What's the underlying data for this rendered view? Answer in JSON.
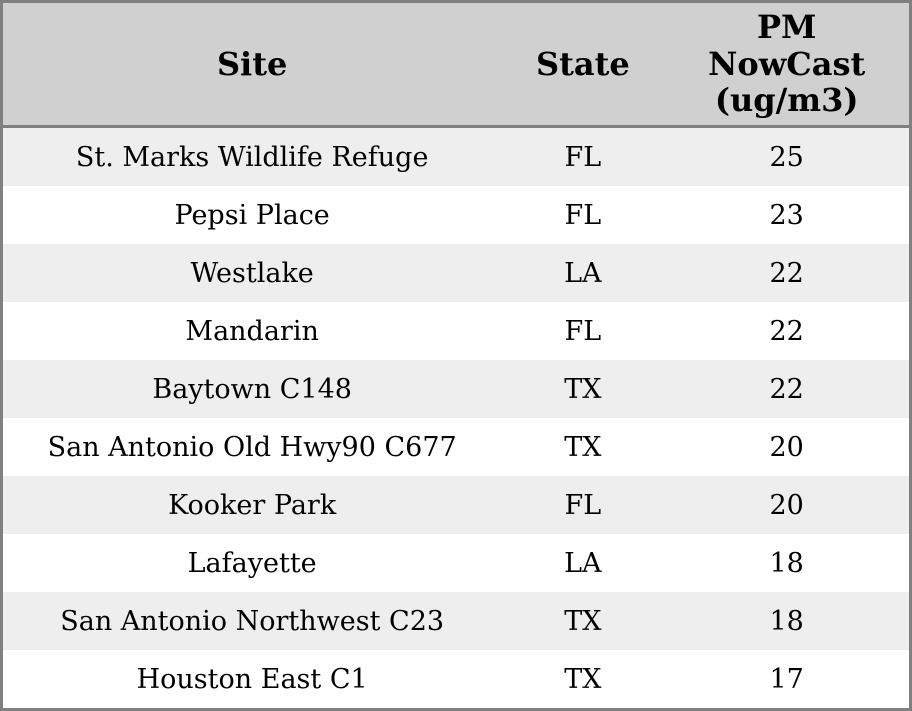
{
  "table": {
    "columns": [
      {
        "label": "Site"
      },
      {
        "label": "State"
      },
      {
        "label": "PM\nNowCast\n(ug/m3)"
      }
    ],
    "rows": [
      {
        "site": "St. Marks Wildlife Refuge",
        "state": "FL",
        "pm": "25"
      },
      {
        "site": "Pepsi Place",
        "state": "FL",
        "pm": "23"
      },
      {
        "site": "Westlake",
        "state": "LA",
        "pm": "22"
      },
      {
        "site": "Mandarin",
        "state": "FL",
        "pm": "22"
      },
      {
        "site": "Baytown C148",
        "state": "TX",
        "pm": "22"
      },
      {
        "site": "San Antonio Old Hwy90 C677",
        "state": "TX",
        "pm": "20"
      },
      {
        "site": "Kooker Park",
        "state": "FL",
        "pm": "20"
      },
      {
        "site": "Lafayette",
        "state": "LA",
        "pm": "18"
      },
      {
        "site": "San Antonio Northwest C23",
        "state": "TX",
        "pm": "18"
      },
      {
        "site": "Houston East C1",
        "state": "TX",
        "pm": "17"
      }
    ]
  },
  "colors": {
    "border": "#808080",
    "header_bg": "#d0d0d0",
    "row_alt_bg": "#eeeeee",
    "row_bg": "#ffffff",
    "text": "#000000"
  },
  "chart_data": {
    "type": "table",
    "columns": [
      "Site",
      "State",
      "PM NowCast (ug/m3)"
    ],
    "rows": [
      [
        "St. Marks Wildlife Refuge",
        "FL",
        25
      ],
      [
        "Pepsi Place",
        "FL",
        23
      ],
      [
        "Westlake",
        "LA",
        22
      ],
      [
        "Mandarin",
        "FL",
        22
      ],
      [
        "Baytown C148",
        "TX",
        22
      ],
      [
        "San Antonio Old Hwy90 C677",
        "TX",
        20
      ],
      [
        "Kooker Park",
        "FL",
        20
      ],
      [
        "Lafayette",
        "LA",
        18
      ],
      [
        "San Antonio Northwest C23",
        "TX",
        18
      ],
      [
        "Houston East C1",
        "TX",
        17
      ]
    ]
  }
}
